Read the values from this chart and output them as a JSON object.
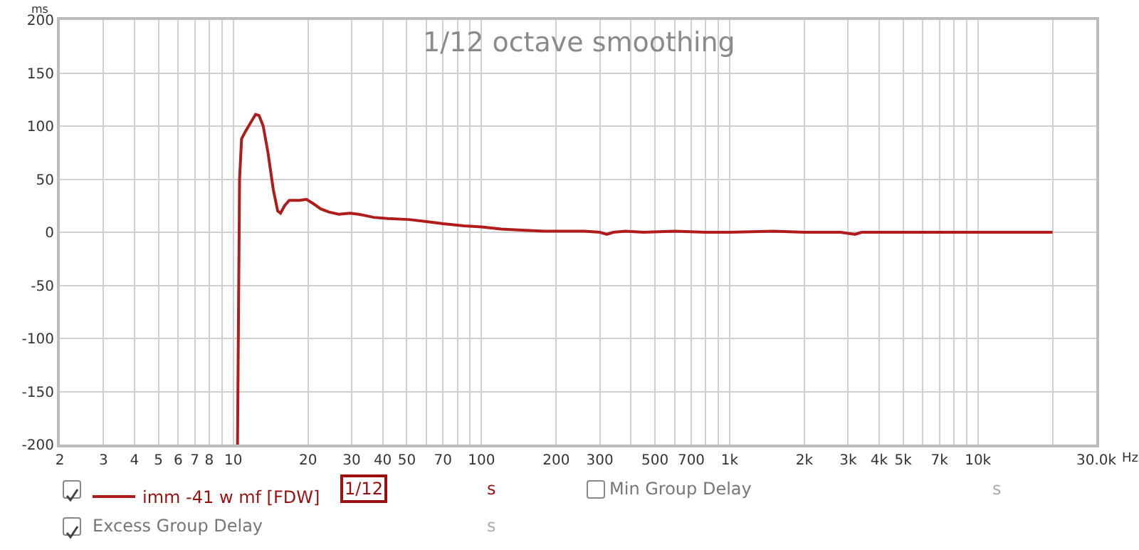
{
  "chart_data": {
    "type": "line",
    "title": "1/12 octave smoothing",
    "xlabel": "Hz",
    "ylabel": "ms",
    "log": "x",
    "grid": true,
    "legend": "bottom",
    "marker": "none",
    "line_style": "solid",
    "xlim": [
      2,
      30000
    ],
    "ylim": [
      -200,
      200
    ],
    "xticks": [
      2,
      3,
      4,
      5,
      6,
      7,
      8,
      {
        "value": 9,
        "label": null
      },
      10,
      20,
      30,
      40,
      50,
      {
        "value": 60,
        "label": null
      },
      70,
      {
        "value": 80,
        "label": null
      },
      {
        "value": 90,
        "label": null
      },
      100,
      200,
      300,
      {
        "value": 400,
        "label": null
      },
      500,
      {
        "value": 600,
        "label": null
      },
      700,
      {
        "value": 800,
        "label": null
      },
      {
        "value": 900,
        "label": null
      },
      {
        "value": 1000,
        "label": "1k"
      },
      {
        "value": 2000,
        "label": "2k"
      },
      {
        "value": 3000,
        "label": "3k"
      },
      {
        "value": 4000,
        "label": "4k"
      },
      {
        "value": 5000,
        "label": "5k"
      },
      {
        "value": 6000,
        "label": null
      },
      {
        "value": 7000,
        "label": "7k"
      },
      {
        "value": 8000,
        "label": null
      },
      {
        "value": 9000,
        "label": null
      },
      {
        "value": 10000,
        "label": "10k"
      },
      {
        "value": 20000,
        "label": null
      },
      {
        "value": 30000,
        "label": "30.0k"
      }
    ],
    "yticks": [
      -200,
      -150,
      -100,
      -50,
      0,
      50,
      100,
      150,
      200
    ],
    "series": [
      {
        "name": "imm -41 w mf [FDW]",
        "color": "#b01c1c",
        "x": [
          10.4,
          10.6,
          10.8,
          11.2,
          11.8,
          12.3,
          12.7,
          13.2,
          13.8,
          14.5,
          15.1,
          15.5,
          16.1,
          16.8,
          17.5,
          18.5,
          19.7,
          21,
          22.5,
          24.3,
          26.6,
          29.5,
          32,
          36.8,
          42,
          51,
          60,
          70,
          85,
          100,
          120,
          145,
          180,
          215,
          260,
          300,
          320,
          340,
          380,
          450,
          600,
          800,
          1000,
          1500,
          2000,
          2800,
          3200,
          3400,
          3700,
          5000,
          7000,
          10000,
          15000,
          20000
        ],
        "values": [
          -200,
          50,
          88,
          95,
          104,
          111,
          110,
          100,
          75,
          40,
          20,
          18,
          25,
          30,
          30,
          30,
          31,
          27,
          22,
          19,
          17,
          18,
          17,
          14,
          13,
          12,
          10,
          8,
          6,
          5,
          3,
          2,
          1,
          1,
          1,
          0,
          -2,
          0,
          1,
          0,
          1,
          0,
          0,
          1,
          0,
          0,
          -2,
          0,
          0,
          0,
          0,
          0,
          0,
          0
        ]
      }
    ],
    "annotations": [
      "1/12",
      "s",
      "Min Group Delay",
      "s",
      "Excess Group Delay",
      "s"
    ]
  }
}
